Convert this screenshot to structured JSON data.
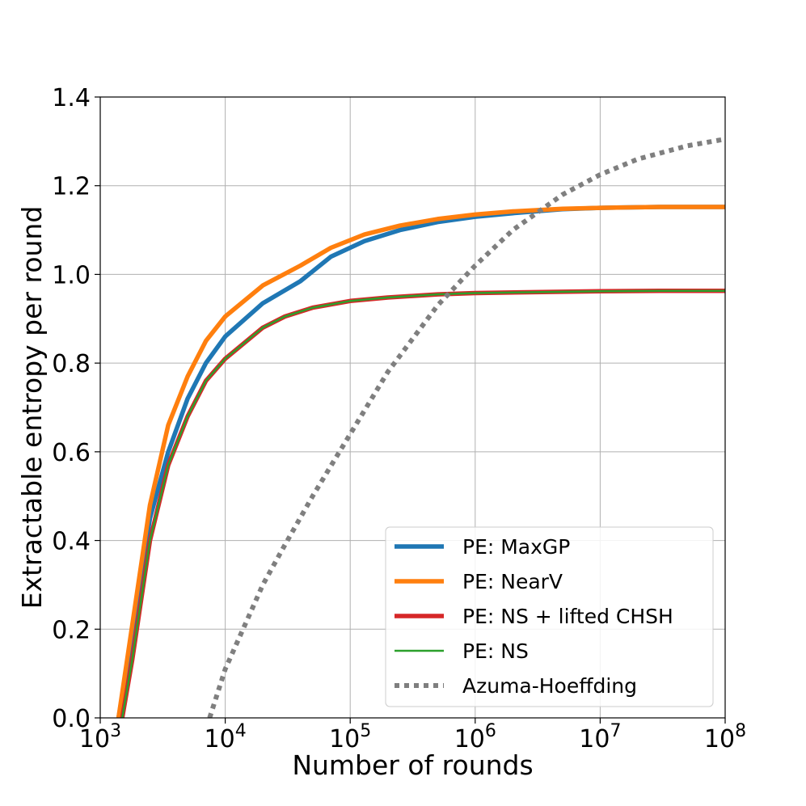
{
  "chart_data": {
    "type": "line",
    "xlabel": "Number of rounds",
    "ylabel": "Extractable entropy per round",
    "xscale": "log",
    "xlim": [
      1000,
      100000000
    ],
    "ylim": [
      0,
      1.4
    ],
    "grid": true,
    "legend_position": "lower-right",
    "x_ticks": [
      {
        "base": "10",
        "exp": "3",
        "value": 1000
      },
      {
        "base": "10",
        "exp": "4",
        "value": 10000
      },
      {
        "base": "10",
        "exp": "5",
        "value": 100000
      },
      {
        "base": "10",
        "exp": "6",
        "value": 1000000
      },
      {
        "base": "10",
        "exp": "7",
        "value": 10000000
      },
      {
        "base": "10",
        "exp": "8",
        "value": 100000000
      }
    ],
    "y_ticks": [
      {
        "label": "0.0",
        "value": 0.0
      },
      {
        "label": "0.2",
        "value": 0.2
      },
      {
        "label": "0.4",
        "value": 0.4
      },
      {
        "label": "0.6",
        "value": 0.6
      },
      {
        "label": "0.8",
        "value": 0.8
      },
      {
        "label": "1.0",
        "value": 1.0
      },
      {
        "label": "1.2",
        "value": 1.2
      },
      {
        "label": "1.4",
        "value": 1.4
      }
    ],
    "series": [
      {
        "name": "PE: MaxGP",
        "color": "#1f77b4",
        "style": "solid",
        "width": "thick",
        "x": [
          1400,
          1700,
          2500,
          3500,
          5000,
          7000,
          10000,
          20000,
          40000,
          70000,
          130000,
          250000,
          500000,
          1000000,
          2000000,
          5000000,
          10000000,
          30000000,
          100000000
        ],
        "y": [
          0.0,
          0.14,
          0.45,
          0.6,
          0.72,
          0.8,
          0.86,
          0.935,
          0.985,
          1.04,
          1.075,
          1.1,
          1.118,
          1.13,
          1.138,
          1.147,
          1.15,
          1.152,
          1.152
        ]
      },
      {
        "name": "PE: NearV",
        "color": "#ff7f0e",
        "style": "solid",
        "width": "thick",
        "x": [
          1400,
          1700,
          2500,
          3500,
          5000,
          7000,
          10000,
          20000,
          40000,
          70000,
          130000,
          250000,
          500000,
          1000000,
          2000000,
          5000000,
          10000000,
          30000000,
          100000000
        ],
        "y": [
          0.0,
          0.16,
          0.48,
          0.66,
          0.77,
          0.85,
          0.905,
          0.975,
          1.02,
          1.06,
          1.09,
          1.11,
          1.125,
          1.135,
          1.142,
          1.148,
          1.15,
          1.152,
          1.152
        ]
      },
      {
        "name": "PE: NS + lifted CHSH",
        "color": "#d62728",
        "style": "solid",
        "width": "thick",
        "x": [
          1500,
          1800,
          2500,
          3500,
          5000,
          7000,
          10000,
          20000,
          30000,
          50000,
          100000,
          200000,
          500000,
          1000000,
          3000000,
          10000000,
          30000000,
          100000000
        ],
        "y": [
          0.0,
          0.13,
          0.4,
          0.57,
          0.68,
          0.76,
          0.81,
          0.88,
          0.905,
          0.925,
          0.94,
          0.948,
          0.955,
          0.958,
          0.96,
          0.962,
          0.963,
          0.963
        ]
      },
      {
        "name": "PE: NS",
        "color": "#2ca02c",
        "style": "solid",
        "width": "thin",
        "x": [
          1500,
          1800,
          2500,
          3500,
          5000,
          7000,
          10000,
          20000,
          30000,
          50000,
          100000,
          200000,
          500000,
          1000000,
          3000000,
          10000000,
          30000000,
          100000000
        ],
        "y": [
          0.0,
          0.13,
          0.4,
          0.57,
          0.68,
          0.76,
          0.81,
          0.88,
          0.905,
          0.925,
          0.94,
          0.948,
          0.955,
          0.958,
          0.96,
          0.962,
          0.963,
          0.963
        ]
      },
      {
        "name": "Azuma-Hoeffding",
        "color": "#7f7f7f",
        "style": "dotted",
        "width": "thick",
        "x": [
          7500,
          10000,
          20000,
          30000,
          50000,
          100000,
          200000,
          500000,
          1000000,
          2000000,
          5000000,
          10000000,
          20000000,
          50000000,
          100000000
        ],
        "y": [
          0.0,
          0.11,
          0.3,
          0.39,
          0.5,
          0.64,
          0.78,
          0.93,
          1.02,
          1.1,
          1.18,
          1.225,
          1.26,
          1.29,
          1.305
        ]
      }
    ]
  }
}
